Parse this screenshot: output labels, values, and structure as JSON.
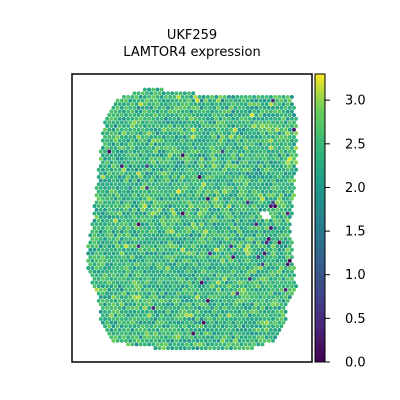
{
  "chart_data": {
    "type": "heatmap",
    "title_line1": "UKF259",
    "title_line2": "LAMTOR4 expression",
    "xlabel": "",
    "ylabel": "",
    "colorbar": {
      "colormap": "viridis",
      "range": [
        0.0,
        3.3
      ],
      "ticks": [
        "0.0",
        "0.5",
        "1.0",
        "1.5",
        "2.0",
        "2.5",
        "3.0"
      ],
      "tick_values": [
        0.0,
        0.5,
        1.0,
        1.5,
        2.0,
        2.5,
        3.0
      ]
    },
    "spot_expression_typical_range": [
      1.6,
      3.2
    ],
    "spot_expression_mean": 2.45,
    "low_expression_spots_present": true,
    "grid": false
  },
  "colors": {
    "frame": "#000000",
    "background": "#ffffff",
    "viridis_low": "#440154",
    "viridis_mid": "#21918c",
    "viridis_high": "#fde725"
  }
}
